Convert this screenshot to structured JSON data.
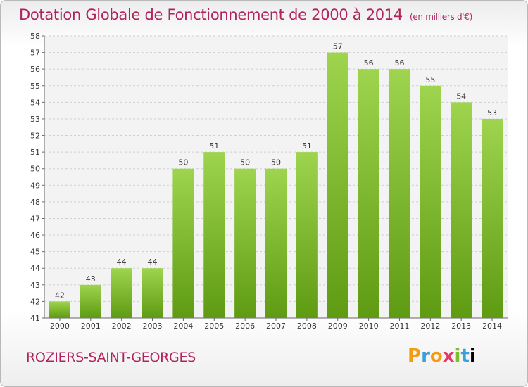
{
  "header": {
    "title": "Dotation Globale de Fonctionnement de 2000 à 2014",
    "subtitle": "(en milliers d'€)"
  },
  "footer": {
    "place": "ROZIERS-SAINT-GEORGES",
    "logo": [
      "P",
      "r",
      "o",
      "x",
      "i",
      "t",
      "i"
    ]
  },
  "colors": {
    "bar_top": "#9ed44e",
    "bar_bottom": "#5e9b12",
    "title": "#b0245e"
  },
  "chart_data": {
    "type": "bar",
    "title": "Dotation Globale de Fonctionnement de 2000 à 2014",
    "subtitle": "(en milliers d'€)",
    "categories": [
      "2000",
      "2001",
      "2002",
      "2003",
      "2004",
      "2005",
      "2006",
      "2007",
      "2008",
      "2009",
      "2010",
      "2011",
      "2012",
      "2013",
      "2014"
    ],
    "values": [
      42,
      43,
      44,
      44,
      50,
      51,
      50,
      50,
      51,
      57,
      56,
      56,
      55,
      54,
      53
    ],
    "ylim": [
      41,
      58
    ],
    "yticks": [
      41,
      42,
      43,
      44,
      45,
      46,
      47,
      48,
      49,
      50,
      51,
      52,
      53,
      54,
      55,
      56,
      57,
      58
    ],
    "grid": true,
    "data_labels": true
  }
}
